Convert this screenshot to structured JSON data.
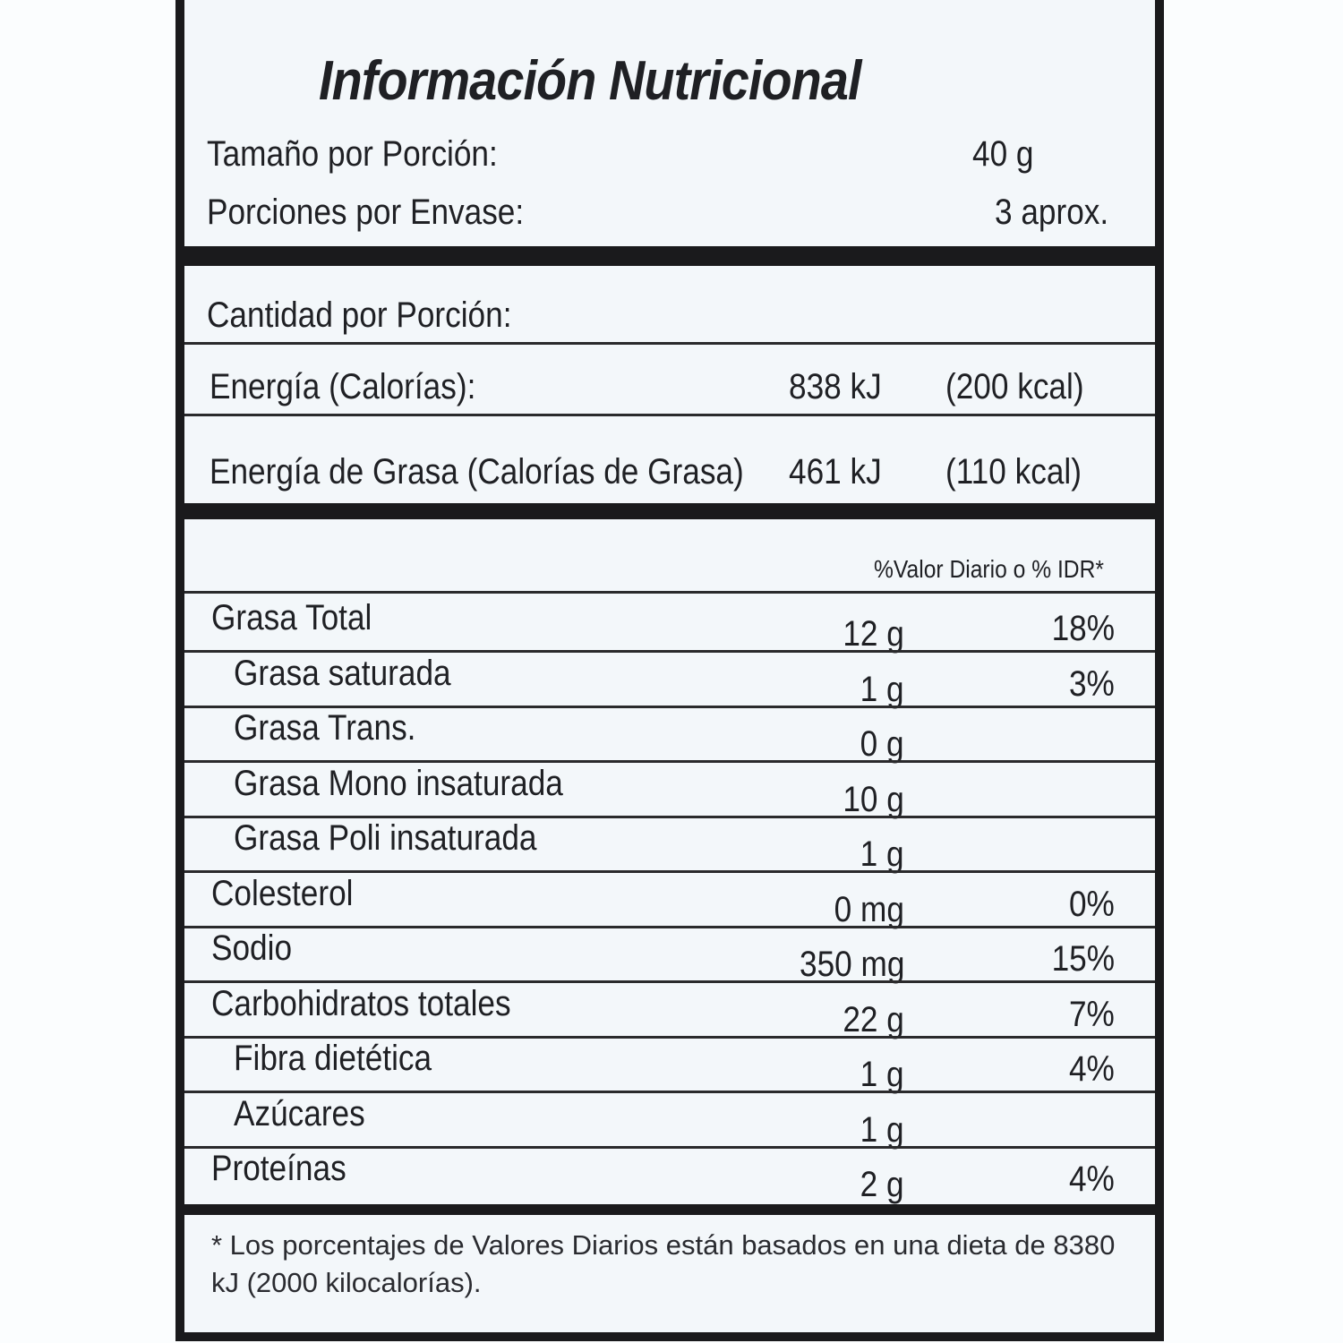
{
  "title": "Información Nutricional",
  "serving": [
    {
      "label": "Tamaño por Porción:",
      "value": "40 g"
    },
    {
      "label": "Porciones por Envase:",
      "value": "3 aprox."
    }
  ],
  "amount_header": "Cantidad por Porción:",
  "energy": [
    {
      "label": "Energía (Calorías):",
      "kj": "838 kJ",
      "kcal": "(200 kcal)"
    },
    {
      "label": "Energía de Grasa (Calorías de Grasa)",
      "kj": "461 kJ",
      "kcal": "(110 kcal)"
    }
  ],
  "dv_header": "%Valor Diario o % IDR*",
  "nutrients": [
    {
      "label": "Grasa Total",
      "amount": "12 g",
      "dv": "18%",
      "indent": false
    },
    {
      "label": "Grasa saturada",
      "amount": "1 g",
      "dv": "3%",
      "indent": true
    },
    {
      "label": "Grasa Trans.",
      "amount": "0 g",
      "dv": "",
      "indent": true
    },
    {
      "label": "Grasa Mono insaturada",
      "amount": "10 g",
      "dv": "",
      "indent": true
    },
    {
      "label": "Grasa Poli insaturada",
      "amount": "1 g",
      "dv": "",
      "indent": true
    },
    {
      "label": "Colesterol",
      "amount": "0 mg",
      "dv": "0%",
      "indent": false
    },
    {
      "label": "Sodio",
      "amount": "350 mg",
      "dv": "15%",
      "indent": false
    },
    {
      "label": "Carbohidratos totales",
      "amount": "22 g",
      "dv": "7%",
      "indent": false
    },
    {
      "label": "Fibra dietética",
      "amount": "1 g",
      "dv": "4%",
      "indent": true
    },
    {
      "label": "Azúcares",
      "amount": "1 g",
      "dv": "",
      "indent": true
    },
    {
      "label": "Proteínas",
      "amount": "2 g",
      "dv": "4%",
      "indent": false
    }
  ],
  "footnote": "* Los porcentajes de Valores Diarios están basados en una dieta de 8380 kJ (2000 kilocalorías)."
}
